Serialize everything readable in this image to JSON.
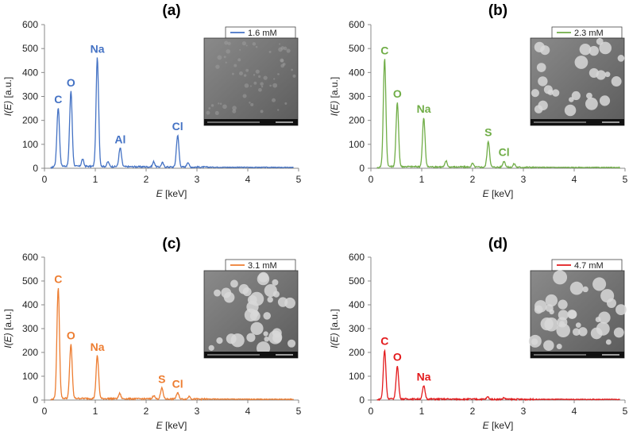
{
  "chart_data": [
    {
      "type": "line",
      "title": "(a)",
      "xlabel_italic": "E",
      "xlabel_unit": "[keV]",
      "ylabel_italic": "I(E)",
      "ylabel_unit": "[a.u.]",
      "xlim": [
        0,
        5
      ],
      "ylim": [
        0,
        600
      ],
      "x_ticks": [
        0,
        1,
        2,
        3,
        4,
        5
      ],
      "y_ticks": [
        0,
        100,
        200,
        300,
        400,
        500,
        600
      ],
      "grid": false,
      "legend_position": "top-right",
      "color": "#4472C4",
      "series": [
        {
          "name": "1.6 mM"
        }
      ],
      "baseline": 8,
      "peaks": [
        {
          "label": "C",
          "x": 0.27,
          "y": 245
        },
        {
          "label": "O",
          "x": 0.52,
          "y": 315
        },
        {
          "label": "Na",
          "x": 1.04,
          "y": 455
        },
        {
          "label": "Al",
          "x": 1.49,
          "y": 78
        },
        {
          "label": "Cl",
          "x": 2.62,
          "y": 132
        }
      ],
      "minor_peaks": [
        {
          "x": 0.75,
          "y": 30
        },
        {
          "x": 1.25,
          "y": 20
        },
        {
          "x": 2.15,
          "y": 22
        },
        {
          "x": 2.32,
          "y": 18
        },
        {
          "x": 2.82,
          "y": 20
        }
      ]
    },
    {
      "type": "line",
      "title": "(b)",
      "xlabel_italic": "E",
      "xlabel_unit": "[keV]",
      "ylabel_italic": "I(E)",
      "ylabel_unit": "[a.u.]",
      "xlim": [
        0,
        5
      ],
      "ylim": [
        0,
        600
      ],
      "x_ticks": [
        0,
        1,
        2,
        3,
        4,
        5
      ],
      "y_ticks": [
        0,
        100,
        200,
        300,
        400,
        500,
        600
      ],
      "grid": false,
      "legend_position": "top-right",
      "color": "#70AD47",
      "series": [
        {
          "name": "2.3 mM"
        }
      ],
      "baseline": 6,
      "peaks": [
        {
          "label": "C",
          "x": 0.27,
          "y": 450
        },
        {
          "label": "O",
          "x": 0.52,
          "y": 268
        },
        {
          "label": "Na",
          "x": 1.04,
          "y": 205
        },
        {
          "label": "S",
          "x": 2.31,
          "y": 108
        },
        {
          "label": "Cl",
          "x": 2.62,
          "y": 25
        }
      ],
      "minor_peaks": [
        {
          "x": 1.48,
          "y": 25
        },
        {
          "x": 2.0,
          "y": 15
        },
        {
          "x": 2.82,
          "y": 15
        }
      ]
    },
    {
      "type": "line",
      "title": "(c)",
      "xlabel_italic": "E",
      "xlabel_unit": "[keV]",
      "ylabel_italic": "I(E)",
      "ylabel_unit": "[a.u.]",
      "xlim": [
        0,
        5
      ],
      "ylim": [
        0,
        600
      ],
      "x_ticks": [
        0,
        1,
        2,
        3,
        4,
        5
      ],
      "y_ticks": [
        0,
        100,
        200,
        300,
        400,
        500,
        600
      ],
      "grid": false,
      "legend_position": "top-right",
      "color": "#ED7D31",
      "series": [
        {
          "name": "3.1 mM"
        }
      ],
      "baseline": 6,
      "peaks": [
        {
          "label": "C",
          "x": 0.27,
          "y": 465
        },
        {
          "label": "O",
          "x": 0.52,
          "y": 228
        },
        {
          "label": "Na",
          "x": 1.04,
          "y": 180
        },
        {
          "label": "S",
          "x": 2.31,
          "y": 45
        },
        {
          "label": "Cl",
          "x": 2.62,
          "y": 25
        }
      ],
      "minor_peaks": [
        {
          "x": 1.48,
          "y": 22
        },
        {
          "x": 2.15,
          "y": 15
        },
        {
          "x": 2.85,
          "y": 12
        }
      ]
    },
    {
      "type": "line",
      "title": "(d)",
      "xlabel_italic": "E",
      "xlabel_unit": "[keV]",
      "ylabel_italic": "I(E)",
      "ylabel_unit": "[a.u.]",
      "xlim": [
        0,
        5
      ],
      "ylim": [
        0,
        600
      ],
      "x_ticks": [
        0,
        1,
        2,
        3,
        4,
        5
      ],
      "y_ticks": [
        0,
        100,
        200,
        300,
        400,
        500,
        600
      ],
      "grid": false,
      "legend_position": "top-right",
      "color": "#E31A1C",
      "series": [
        {
          "name": "4.7 mM"
        }
      ],
      "baseline": 3,
      "peaks": [
        {
          "label": "C",
          "x": 0.27,
          "y": 205
        },
        {
          "label": "O",
          "x": 0.52,
          "y": 138
        },
        {
          "label": "Na",
          "x": 1.04,
          "y": 55
        }
      ],
      "minor_peaks": [
        {
          "x": 2.3,
          "y": 10
        },
        {
          "x": 2.62,
          "y": 6
        }
      ]
    }
  ]
}
